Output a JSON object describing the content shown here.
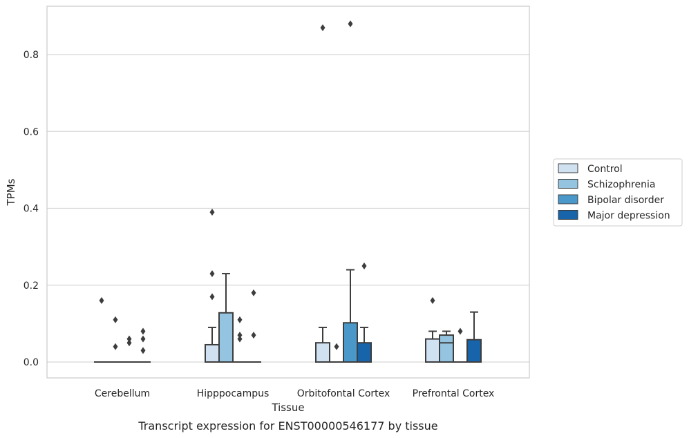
{
  "chart_data": {
    "type": "box",
    "title": "",
    "xlabel": "Tissue",
    "ylabel": "TPMs",
    "caption": "Transcript expression for ENST00000546177 by tissue",
    "ylim": [
      -0.042,
      0.93
    ],
    "yticks": [
      0.0,
      0.2,
      0.4,
      0.6,
      0.8
    ],
    "ytick_labels": [
      "0.0",
      "0.2",
      "0.4",
      "0.6",
      "0.8"
    ],
    "grid": "horizontal",
    "legend_position": "right-center",
    "categories": [
      "Cerebellum",
      "Hipppocampus",
      "Orbitofontal Cortex",
      "Prefrontal Cortex"
    ],
    "series": [
      {
        "name": "Control",
        "color": "#d0e1f2",
        "boxes": [
          {
            "q1": 0.0,
            "median": 0.0,
            "q3": 0.0,
            "whislo": 0.0,
            "whishi": 0.0,
            "fliers": [
              0.16
            ]
          },
          {
            "q1": 0.0,
            "median": 0.0,
            "q3": 0.045,
            "whislo": 0.0,
            "whishi": 0.09,
            "fliers": [
              0.17,
              0.23,
              0.39
            ]
          },
          {
            "q1": 0.0,
            "median": 0.0,
            "q3": 0.05,
            "whislo": 0.0,
            "whishi": 0.09,
            "fliers": [
              0.87
            ]
          },
          {
            "q1": 0.0,
            "median": 0.0,
            "q3": 0.06,
            "whislo": 0.0,
            "whishi": 0.08,
            "fliers": [
              0.16
            ]
          }
        ]
      },
      {
        "name": "Schizophrenia",
        "color": "#94c4df",
        "boxes": [
          {
            "q1": 0.0,
            "median": 0.0,
            "q3": 0.0,
            "whislo": 0.0,
            "whishi": 0.0,
            "fliers": [
              0.04,
              0.11
            ]
          },
          {
            "q1": 0.0,
            "median": 0.0,
            "q3": 0.128,
            "whislo": 0.0,
            "whishi": 0.23,
            "fliers": []
          },
          {
            "q1": 0.0,
            "median": 0.0,
            "q3": 0.0,
            "whislo": 0.0,
            "whishi": 0.0,
            "fliers": [
              0.04
            ]
          },
          {
            "q1": 0.0,
            "median": 0.05,
            "q3": 0.07,
            "whislo": 0.0,
            "whishi": 0.08,
            "fliers": []
          }
        ]
      },
      {
        "name": "Bipolar disorder",
        "color": "#4a98c9",
        "boxes": [
          {
            "q1": 0.0,
            "median": 0.0,
            "q3": 0.0,
            "whislo": 0.0,
            "whishi": 0.0,
            "fliers": [
              0.05,
              0.06
            ]
          },
          {
            "q1": 0.0,
            "median": 0.0,
            "q3": 0.0,
            "whislo": 0.0,
            "whishi": 0.0,
            "fliers": [
              0.06,
              0.07,
              0.11
            ]
          },
          {
            "q1": 0.0,
            "median": 0.0,
            "q3": 0.102,
            "whislo": 0.0,
            "whishi": 0.24,
            "fliers": [
              0.88
            ]
          },
          {
            "q1": 0.0,
            "median": 0.0,
            "q3": 0.0,
            "whislo": 0.0,
            "whishi": 0.0,
            "fliers": [
              0.08
            ]
          }
        ]
      },
      {
        "name": "Major depression",
        "color": "#1764ab",
        "boxes": [
          {
            "q1": 0.0,
            "median": 0.0,
            "q3": 0.0,
            "whislo": 0.0,
            "whishi": 0.0,
            "fliers": [
              0.03,
              0.06,
              0.08
            ]
          },
          {
            "q1": 0.0,
            "median": 0.0,
            "q3": 0.0,
            "whislo": 0.0,
            "whishi": 0.0,
            "fliers": [
              0.07,
              0.18
            ]
          },
          {
            "q1": 0.0,
            "median": 0.0,
            "q3": 0.05,
            "whislo": 0.0,
            "whishi": 0.09,
            "fliers": [
              0.25
            ]
          },
          {
            "q1": 0.0,
            "median": 0.0,
            "q3": 0.058,
            "whislo": 0.0,
            "whishi": 0.13,
            "fliers": []
          }
        ]
      }
    ]
  }
}
